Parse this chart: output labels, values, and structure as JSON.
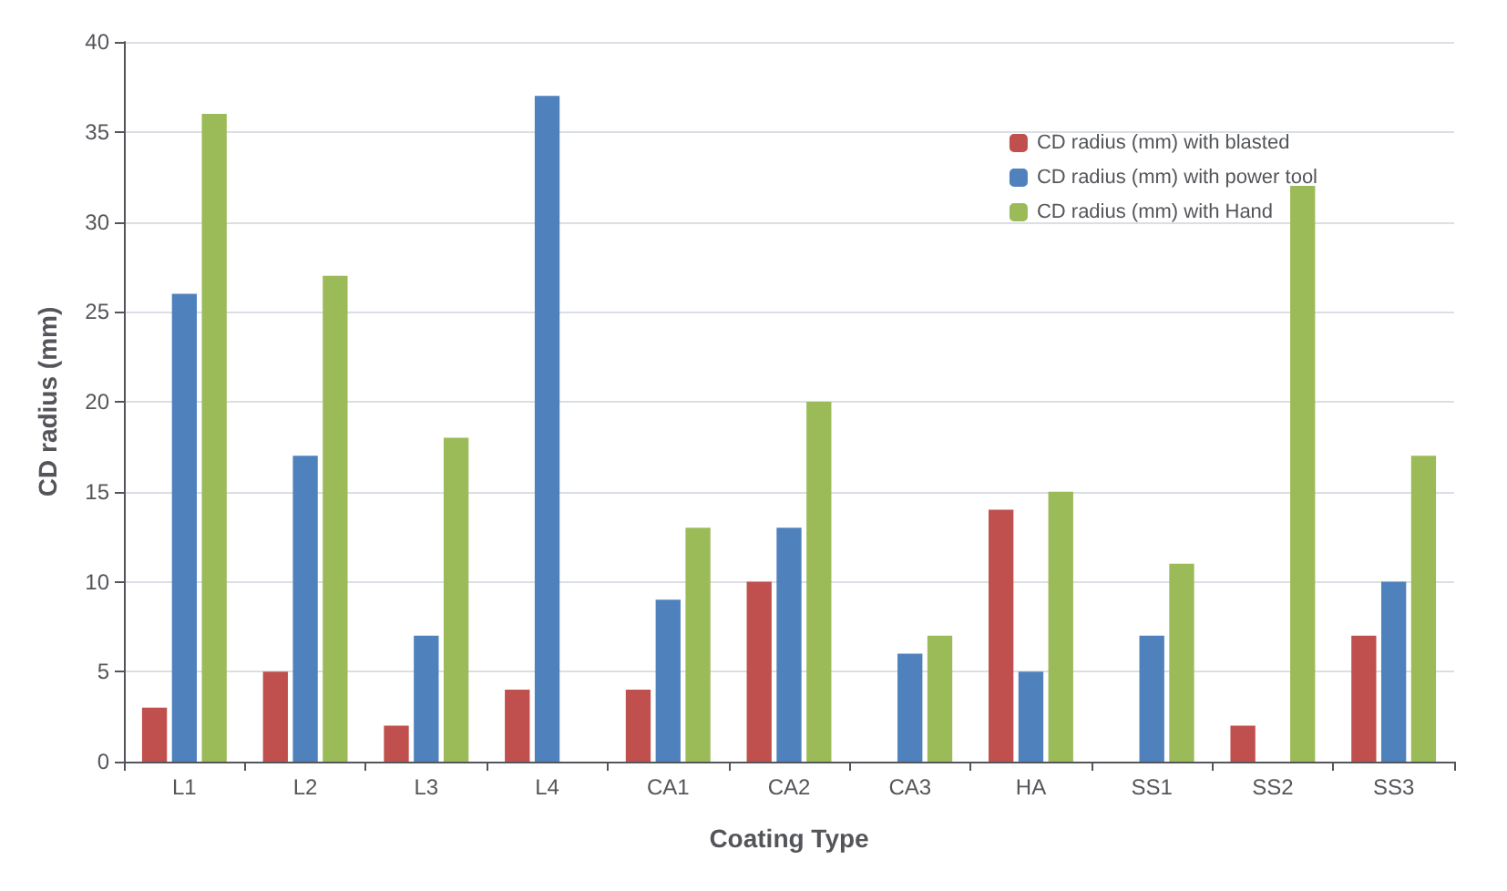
{
  "chart_data": {
    "type": "bar",
    "xlabel": "Coating Type",
    "ylabel": "CD radius (mm)",
    "categories": [
      "L1",
      "L2",
      "L3",
      "L4",
      "CA1",
      "CA2",
      "CA3",
      "HA",
      "SS1",
      "SS2",
      "SS3"
    ],
    "series": [
      {
        "name": "CD radius (mm) with blasted",
        "color": "#c0504d",
        "values": [
          3,
          5,
          2,
          4,
          4,
          10,
          0,
          14,
          0,
          2,
          7
        ]
      },
      {
        "name": "CD radius (mm) with power tool",
        "color": "#4f81bd",
        "values": [
          26,
          17,
          7,
          37,
          9,
          13,
          6,
          5,
          7,
          0,
          10
        ]
      },
      {
        "name": "CD radius (mm) with Hand",
        "color": "#9bbb59",
        "values": [
          36,
          27,
          18,
          0,
          13,
          20,
          7,
          15,
          11,
          32,
          17
        ]
      }
    ],
    "ylim": [
      0,
      40
    ],
    "yticks": [
      0,
      5,
      10,
      15,
      20,
      25,
      30,
      35,
      40
    ],
    "grid": "y",
    "legend": "top right"
  }
}
